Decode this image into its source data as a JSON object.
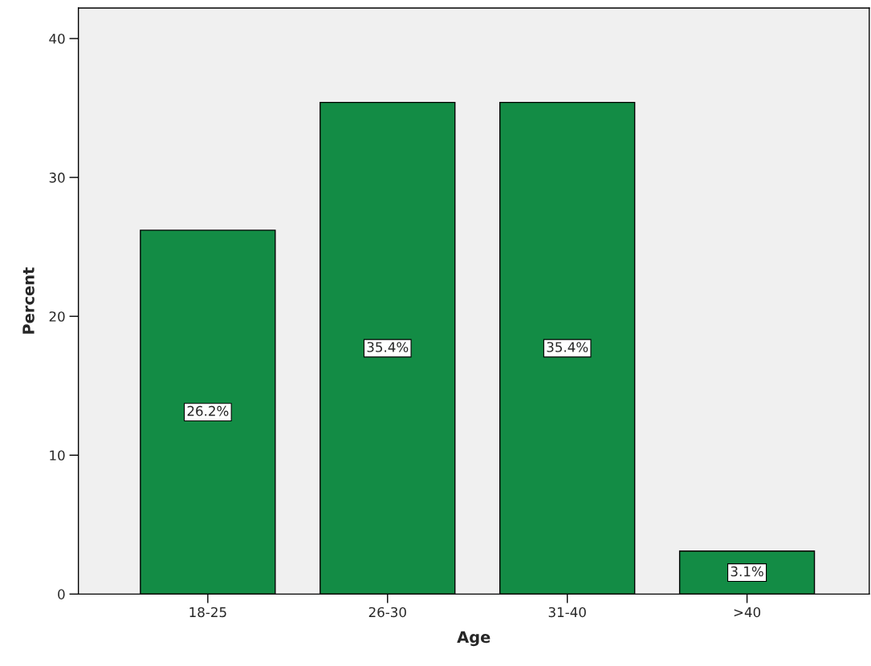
{
  "chart_data": {
    "type": "bar",
    "xlabel": "Age",
    "ylabel": "Percent",
    "categories": [
      "18-25",
      "26-30",
      "31-40",
      ">40"
    ],
    "values": [
      26.2,
      35.4,
      35.4,
      3.1
    ],
    "value_labels": [
      "26.2%",
      "35.4%",
      "35.4%",
      "3.1%"
    ],
    "color": "#138c45",
    "ylim": [
      0,
      42.2
    ],
    "yticks": [
      0,
      10,
      20,
      30,
      40
    ],
    "grid": false,
    "legend": false
  }
}
